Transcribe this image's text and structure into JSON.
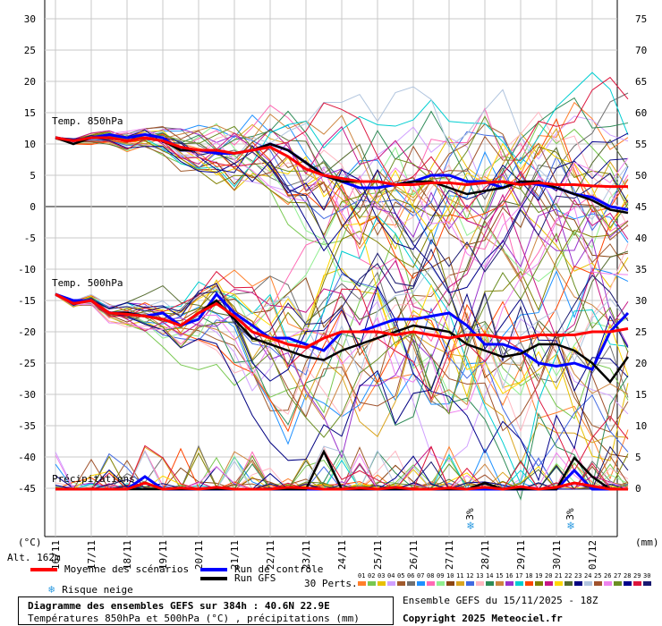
{
  "chart_data": {
    "type": "line",
    "left_axis": {
      "label": "(°C)",
      "ticks": [
        30,
        25,
        20,
        15,
        10,
        5,
        0,
        -5,
        -10,
        -15,
        -20,
        -25,
        -30,
        -35,
        -40,
        -45
      ]
    },
    "right_axis": {
      "label": "(mm)",
      "ticks": [
        75,
        70,
        65,
        60,
        55,
        50,
        45,
        40,
        35,
        30,
        25,
        20,
        15,
        10,
        5,
        0
      ]
    },
    "x_dates": [
      "16/11",
      "17/11",
      "18/11",
      "19/11",
      "20/11",
      "21/11",
      "22/11",
      "23/11",
      "24/11",
      "25/11",
      "26/11",
      "27/11",
      "28/11",
      "29/11",
      "30/11",
      "01/12"
    ],
    "altitude_label": "Alt. 162m",
    "panels": {
      "t850": {
        "label": "Temp. 850hPa"
      },
      "t500": {
        "label": "Temp. 500hPa"
      },
      "precip": {
        "label": "Précipitations"
      }
    },
    "x": [
      0,
      0.5,
      1,
      1.5,
      2,
      2.5,
      3,
      3.5,
      4,
      4.5,
      5,
      5.5,
      6,
      6.5,
      7,
      7.5,
      8,
      8.5,
      9,
      9.5,
      10,
      10.5,
      11,
      11.5,
      12,
      12.5,
      13,
      13.5,
      14,
      14.5,
      15,
      15.5,
      16
    ],
    "series": [
      {
        "name": "Moyenne des scénarios",
        "role": "mean",
        "t850": [
          11,
          10.5,
          11,
          11,
          10.5,
          11,
          10.5,
          9.5,
          9,
          9,
          8.5,
          9,
          9.5,
          8,
          6,
          5,
          4.5,
          4,
          4,
          3.5,
          3.5,
          3.8,
          3.8,
          3.5,
          3.8,
          4,
          3.5,
          3.8,
          3.5,
          3.5,
          3.3,
          3.2,
          3.2
        ],
        "t500": [
          -14,
          -15.5,
          -15,
          -17,
          -17.2,
          -17.5,
          -18,
          -19,
          -17,
          -15.5,
          -17.5,
          -20,
          -21,
          -22,
          -22.5,
          -21,
          -20,
          -20,
          -20,
          -20.5,
          -20,
          -20.5,
          -21,
          -20.5,
          -20.5,
          -21,
          -21,
          -20.5,
          -20.5,
          -20.5,
          -20,
          -20,
          -19.5
        ],
        "precip": [
          0,
          0,
          0,
          0,
          0,
          1,
          0,
          0.2,
          0,
          0.3,
          0,
          0,
          0,
          0.3,
          0.2,
          0,
          0,
          0.2,
          0,
          0.3,
          0,
          0,
          0.2,
          0,
          0.3,
          0,
          0.4,
          0,
          0.3,
          1,
          0.5,
          0,
          0
        ]
      },
      {
        "name": "Run de contrôle",
        "role": "control",
        "t850": [
          11,
          10.5,
          11,
          11.5,
          11,
          11.5,
          11,
          9,
          9,
          8.5,
          8.5,
          9,
          10,
          9,
          7,
          5,
          4,
          3,
          3,
          3.5,
          4,
          5,
          5,
          4,
          4,
          3,
          4,
          3.5,
          3,
          2,
          1.5,
          0,
          -0.5
        ],
        "t500": [
          -14,
          -15,
          -15,
          -17,
          -17,
          -17.5,
          -17,
          -19,
          -18,
          -14,
          -17,
          -19,
          -21,
          -21,
          -22,
          -23,
          -20,
          -20,
          -19,
          -18,
          -18,
          -17.5,
          -17,
          -19,
          -22,
          -22,
          -23,
          -25,
          -25.5,
          -25,
          -26,
          -20,
          -17
        ],
        "precip": [
          0,
          0,
          0,
          0,
          0,
          2,
          0,
          0,
          0,
          0,
          0,
          0,
          0,
          0,
          0,
          0,
          0,
          0,
          0,
          0,
          0,
          0,
          0,
          0,
          0,
          0,
          0,
          0,
          0,
          3,
          0,
          0,
          0
        ]
      },
      {
        "name": "Run GFS",
        "role": "gfs",
        "t850": [
          11,
          10,
          11,
          11,
          10.5,
          11,
          10.5,
          9,
          9,
          9,
          8.5,
          9,
          10,
          9,
          7,
          5,
          4,
          4,
          4,
          3.5,
          4,
          4,
          3,
          2,
          2.5,
          3,
          4,
          4,
          3,
          2,
          1,
          -0.5,
          -1
        ],
        "t500": [
          -14,
          -15.5,
          -15,
          -17,
          -17,
          -17.5,
          -18,
          -19,
          -17,
          -15,
          -18,
          -21,
          -22,
          -23,
          -24,
          -24.5,
          -23,
          -22,
          -21,
          -20,
          -19,
          -19.5,
          -20,
          -22,
          -23,
          -24,
          -23.5,
          -22,
          -22,
          -23,
          -25,
          -28,
          -24
        ],
        "precip": [
          0,
          0,
          0,
          0,
          0,
          0,
          0,
          0,
          0,
          0,
          0,
          0,
          0,
          0,
          0,
          6,
          0,
          0,
          0,
          0,
          0,
          0,
          0,
          0,
          1,
          0,
          0,
          0,
          0,
          5,
          2,
          0,
          0
        ]
      }
    ],
    "perturbation_count": 30,
    "snow_risk": [
      {
        "date_index": 11.6,
        "label": "3%"
      },
      {
        "date_index": 14.4,
        "label": "3%"
      }
    ],
    "colors": {
      "mean": "#ff0000",
      "control": "#0000ff",
      "gfs": "#000000",
      "snow": "#2e9be0"
    }
  },
  "legend": {
    "mean": "Moyenne des scénarios",
    "control": "Run de contrôle",
    "gfs": "Run GFS",
    "snow": "Risque neige",
    "perts": "30 Perts."
  },
  "perturbations": [
    {
      "n": "01",
      "c": "#ff7f2a"
    },
    {
      "n": "02",
      "c": "#78c850"
    },
    {
      "n": "03",
      "c": "#e8c000"
    },
    {
      "n": "04",
      "c": "#d0a0ff"
    },
    {
      "n": "05",
      "c": "#a05a2c"
    },
    {
      "n": "06",
      "c": "#707070"
    },
    {
      "n": "07",
      "c": "#1e90ff"
    },
    {
      "n": "08",
      "c": "#ff69b4"
    },
    {
      "n": "09",
      "c": "#90ee90"
    },
    {
      "n": "10",
      "c": "#8b4513"
    },
    {
      "n": "11",
      "c": "#daa520"
    },
    {
      "n": "12",
      "c": "#4169e1"
    },
    {
      "n": "13",
      "c": "#ffb6c1"
    },
    {
      "n": "14",
      "c": "#2e8b57"
    },
    {
      "n": "15",
      "c": "#cd853f"
    },
    {
      "n": "16",
      "c": "#9932cc"
    },
    {
      "n": "17",
      "c": "#00ced1"
    },
    {
      "n": "18",
      "c": "#ff4500"
    },
    {
      "n": "19",
      "c": "#808000"
    },
    {
      "n": "20",
      "c": "#c71585"
    },
    {
      "n": "21",
      "c": "#ffd700"
    },
    {
      "n": "22",
      "c": "#556b2f"
    },
    {
      "n": "23",
      "c": "#000080"
    },
    {
      "n": "24",
      "c": "#b0c4de"
    },
    {
      "n": "25",
      "c": "#a0522d"
    },
    {
      "n": "26",
      "c": "#ee82ee"
    },
    {
      "n": "27",
      "c": "#6b8e23"
    },
    {
      "n": "28",
      "c": "#00008b"
    },
    {
      "n": "29",
      "c": "#dc143c"
    },
    {
      "n": "30",
      "c": "#191970"
    }
  ],
  "info": {
    "title": "Diagramme des ensembles GEFS sur 384h : 40.6N 22.9E",
    "subtitle": "Températures 850hPa et 500hPa (°C) , précipitations (mm)",
    "run": "Ensemble GEFS du 15/11/2025 - 18Z",
    "copyright": "Copyright 2025 Meteociel.fr"
  }
}
